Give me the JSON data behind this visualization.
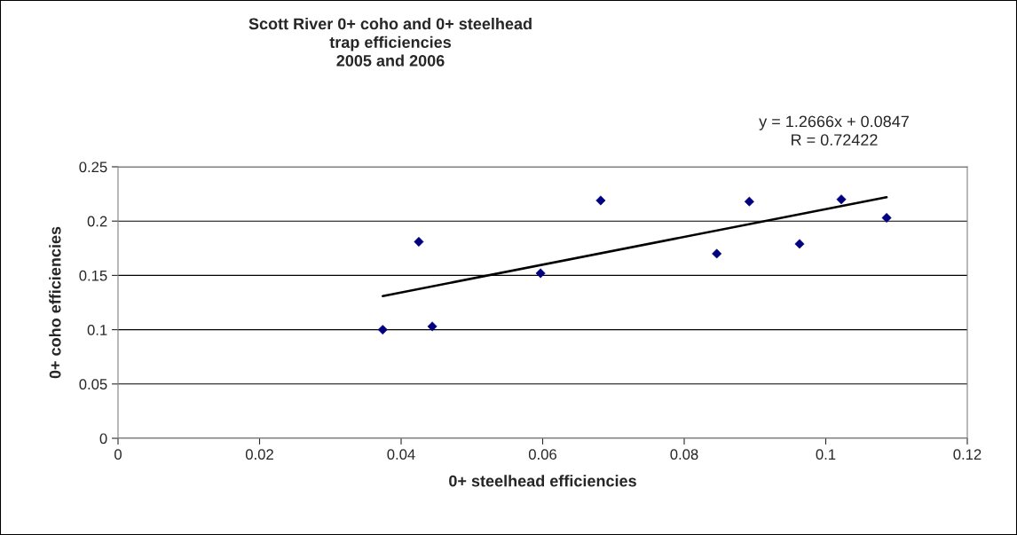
{
  "chart_data": {
    "type": "scatter",
    "title": "Scott River 0+ coho and 0+ steelhead\ntrap efficiencies\n2005 and 2006",
    "xlabel": "0+ steelhead efficiencies",
    "ylabel": "0+ coho efficiencies",
    "xlim": [
      0,
      0.12
    ],
    "xticks": [
      0,
      0.02,
      0.04,
      0.06,
      0.08,
      0.1,
      0.12
    ],
    "ylim": [
      0,
      0.25
    ],
    "yticks": [
      0,
      0.05,
      0.1,
      0.15,
      0.2,
      0.25
    ],
    "grid": "y",
    "marker": "diamond",
    "legend": false,
    "series": [
      {
        "color": "#000080",
        "x": [
          0.0374,
          0.0425,
          0.0444,
          0.0597,
          0.0682,
          0.0846,
          0.0892,
          0.0963,
          0.1022,
          0.1086
        ],
        "values": [
          0.1,
          0.181,
          0.103,
          0.152,
          0.219,
          0.17,
          0.218,
          0.179,
          0.22,
          0.203
        ]
      },
      {
        "type": "line",
        "color": "#000000",
        "line_style": "solid",
        "marker": "none",
        "x": [
          0.0374,
          0.1086
        ],
        "values": [
          0.131,
          0.222
        ]
      }
    ],
    "annotations": [
      "y = 1.2666x + 0.0847\nR = 0.72422"
    ]
  }
}
